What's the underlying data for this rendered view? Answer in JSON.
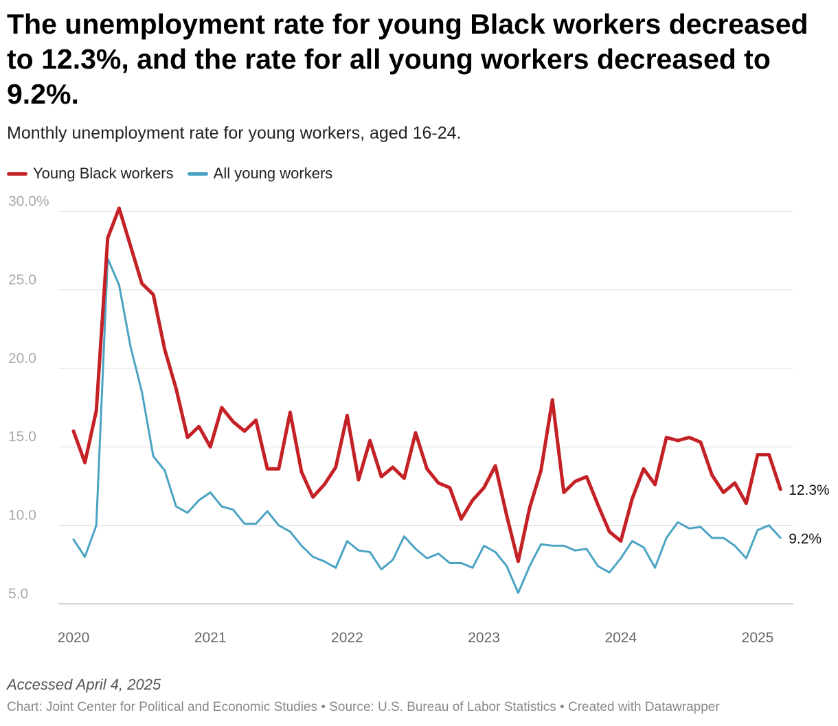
{
  "title": "The unemployment rate for young Black workers decreased to 12.3%, and the rate for all young workers decreased to 9.2%.",
  "subtitle": "Monthly unemployment rate for young workers, aged 16-24.",
  "accessed": "Accessed April 4, 2025",
  "footer": "Chart: Joint Center for Political and Economic Studies • Source: U.S. Bureau of Labor Statistics • Created with Datawrapper",
  "chart_data": {
    "type": "line",
    "title": "The unemployment rate for young Black workers decreased to 12.3%, and the rate for all young workers decreased to 9.2%.",
    "xlabel": "",
    "ylabel": "",
    "ylim": [
      5,
      30
    ],
    "yticks": [
      5,
      10,
      15,
      20,
      25,
      30
    ],
    "ytick_labels": [
      "5.0",
      "10.0",
      "15.0",
      "20.0",
      "25.0",
      "30.0%"
    ],
    "x_start": "2020-01",
    "xticks": [
      2020,
      2021,
      2022,
      2023,
      2024,
      2025
    ],
    "xtick_labels": [
      "2020",
      "2021",
      "2022",
      "2023",
      "2024",
      "2025"
    ],
    "grid": true,
    "series": [
      {
        "name": "Young Black workers",
        "color": "#c42126",
        "end_label": "12.3%",
        "values": [
          16.0,
          14.0,
          17.3,
          28.3,
          30.2,
          27.8,
          25.4,
          24.7,
          21.2,
          18.7,
          15.6,
          16.3,
          15.0,
          17.5,
          16.6,
          16.0,
          16.7,
          13.6,
          13.6,
          17.2,
          13.4,
          11.8,
          12.6,
          13.7,
          17.0,
          12.9,
          15.4,
          13.1,
          13.7,
          13.0,
          15.9,
          13.6,
          12.7,
          12.4,
          10.4,
          11.6,
          12.4,
          13.8,
          10.6,
          7.7,
          11.1,
          13.5,
          18.0,
          12.1,
          12.8,
          13.1,
          11.3,
          9.6,
          9.0,
          11.7,
          13.6,
          12.6,
          15.6,
          15.4,
          15.6,
          15.3,
          13.2,
          12.1,
          12.7,
          11.4,
          14.5,
          14.5,
          12.3
        ]
      },
      {
        "name": "All young workers",
        "color": "#4ba3c3",
        "end_label": "9.2%",
        "values": [
          9.1,
          8.0,
          10.0,
          27.0,
          25.3,
          21.4,
          18.5,
          14.4,
          13.5,
          11.2,
          10.8,
          11.6,
          12.1,
          11.2,
          11.0,
          10.1,
          10.1,
          10.9,
          10.0,
          9.6,
          8.7,
          8.0,
          7.7,
          7.3,
          9.0,
          8.4,
          8.3,
          7.2,
          7.8,
          9.3,
          8.5,
          7.9,
          8.2,
          7.6,
          7.6,
          7.3,
          8.7,
          8.3,
          7.4,
          5.7,
          7.4,
          8.8,
          8.7,
          8.7,
          8.4,
          8.5,
          7.4,
          7.0,
          7.9,
          9.0,
          8.6,
          7.3,
          9.2,
          10.2,
          9.8,
          9.9,
          9.2,
          9.2,
          8.7,
          7.9,
          9.7,
          10.0,
          9.2
        ]
      }
    ]
  }
}
